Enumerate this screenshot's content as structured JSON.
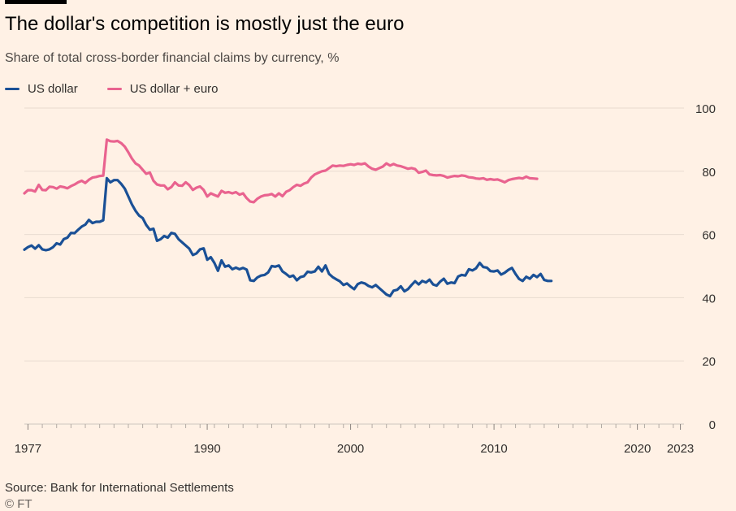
{
  "title": "The dollar's competition is mostly just the euro",
  "subtitle": "Share of total cross-border financial claims by currency, %",
  "source": "Source: Bank for International Settlements",
  "credit": "© FT",
  "colors": {
    "background": "#fff1e5",
    "usd": "#1a5096",
    "usd_eur": "#e9638f",
    "grid": "#e8dbd0",
    "text": "#33302e"
  },
  "chart_data": {
    "type": "line",
    "title": "The dollar's competition is mostly just the euro",
    "ylabel": "Share of total cross-border financial claims by currency, %",
    "ylim": [
      0,
      100
    ],
    "yticks": [
      0,
      20,
      40,
      60,
      80,
      100
    ],
    "xlim": [
      1977.25,
      2023.25
    ],
    "xticks": [
      {
        "value": 1977.5,
        "label": "1977"
      },
      {
        "value": 1990,
        "label": "1990"
      },
      {
        "value": 2000,
        "label": "2000"
      },
      {
        "value": 2010,
        "label": "2010"
      },
      {
        "value": 2020,
        "label": "2020"
      },
      {
        "value": 2023,
        "label": "2023"
      }
    ],
    "series": [
      {
        "name": "US dollar",
        "color": "#1a5096",
        "points": [
          [
            1977.25,
            55.2
          ],
          [
            1977.5,
            56
          ],
          [
            1977.75,
            56.5
          ],
          [
            1978,
            55.5
          ],
          [
            1978.25,
            56.6
          ],
          [
            1978.5,
            55.3
          ],
          [
            1978.75,
            55
          ],
          [
            1979,
            55.3
          ],
          [
            1979.25,
            56
          ],
          [
            1979.5,
            57.2
          ],
          [
            1979.75,
            56.8
          ],
          [
            1980,
            58.5
          ],
          [
            1980.25,
            59
          ],
          [
            1980.5,
            60.5
          ],
          [
            1980.75,
            60.4
          ],
          [
            1981,
            61.5
          ],
          [
            1981.25,
            62.5
          ],
          [
            1981.5,
            63.1
          ],
          [
            1981.75,
            64.6
          ],
          [
            1982,
            63.6
          ],
          [
            1982.25,
            64
          ],
          [
            1982.5,
            64
          ],
          [
            1982.75,
            64.5
          ],
          [
            1983,
            77.8
          ],
          [
            1983.25,
            76.5
          ],
          [
            1983.5,
            77.2
          ],
          [
            1983.75,
            77.2
          ],
          [
            1984,
            76
          ],
          [
            1984.25,
            74.5
          ],
          [
            1984.5,
            72
          ],
          [
            1984.75,
            69.5
          ],
          [
            1985,
            67.5
          ],
          [
            1985.25,
            66
          ],
          [
            1985.5,
            65.2
          ],
          [
            1985.75,
            63
          ],
          [
            1986,
            61.5
          ],
          [
            1986.25,
            61.8
          ],
          [
            1986.5,
            58
          ],
          [
            1986.75,
            58.5
          ],
          [
            1987,
            59.5
          ],
          [
            1987.25,
            59
          ],
          [
            1987.5,
            60.5
          ],
          [
            1987.75,
            60.2
          ],
          [
            1988,
            58.5
          ],
          [
            1988.25,
            57.5
          ],
          [
            1988.5,
            56.5
          ],
          [
            1988.75,
            55.5
          ],
          [
            1989,
            53.5
          ],
          [
            1989.25,
            54
          ],
          [
            1989.5,
            55.3
          ],
          [
            1989.75,
            55.6
          ],
          [
            1990,
            52
          ],
          [
            1990.25,
            52.8
          ],
          [
            1990.5,
            51
          ],
          [
            1990.75,
            48.5
          ],
          [
            1991,
            51.8
          ],
          [
            1991.25,
            49.8
          ],
          [
            1991.5,
            50.2
          ],
          [
            1991.75,
            49
          ],
          [
            1992,
            49.5
          ],
          [
            1992.25,
            49
          ],
          [
            1992.5,
            49.4
          ],
          [
            1992.75,
            48.9
          ],
          [
            1993,
            45.5
          ],
          [
            1993.25,
            45.3
          ],
          [
            1993.5,
            46.4
          ],
          [
            1993.75,
            47
          ],
          [
            1994,
            47.2
          ],
          [
            1994.25,
            48
          ],
          [
            1994.5,
            50
          ],
          [
            1994.75,
            49.8
          ],
          [
            1995,
            50.2
          ],
          [
            1995.25,
            48.3
          ],
          [
            1995.5,
            47.5
          ],
          [
            1995.75,
            46.6
          ],
          [
            1996,
            47
          ],
          [
            1996.25,
            45.5
          ],
          [
            1996.5,
            46.5
          ],
          [
            1996.75,
            46.8
          ],
          [
            1997,
            48.2
          ],
          [
            1997.25,
            48
          ],
          [
            1997.5,
            48.3
          ],
          [
            1997.75,
            49.8
          ],
          [
            1998,
            48.3
          ],
          [
            1998.25,
            50.2
          ],
          [
            1998.5,
            47.5
          ],
          [
            1998.75,
            46.5
          ],
          [
            1999,
            45.8
          ],
          [
            1999.25,
            45.2
          ],
          [
            1999.5,
            44
          ],
          [
            1999.75,
            44.5
          ],
          [
            2000,
            43.5
          ],
          [
            2000.25,
            42.7
          ],
          [
            2000.5,
            44.3
          ],
          [
            2000.75,
            44.8
          ],
          [
            2001,
            44.5
          ],
          [
            2001.25,
            43.7
          ],
          [
            2001.5,
            43.3
          ],
          [
            2001.75,
            44
          ],
          [
            2002,
            43
          ],
          [
            2002.25,
            42
          ],
          [
            2002.5,
            41
          ],
          [
            2002.75,
            40.5
          ],
          [
            2003,
            42.2
          ],
          [
            2003.25,
            42.5
          ],
          [
            2003.5,
            43.6
          ],
          [
            2003.75,
            42
          ],
          [
            2004,
            42.7
          ],
          [
            2004.25,
            44
          ],
          [
            2004.5,
            45.2
          ],
          [
            2004.75,
            44.2
          ],
          [
            2005,
            45.3
          ],
          [
            2005.25,
            44.8
          ],
          [
            2005.5,
            45.7
          ],
          [
            2005.75,
            44.2
          ],
          [
            2006,
            43.8
          ],
          [
            2006.25,
            45.1
          ],
          [
            2006.5,
            46
          ],
          [
            2006.75,
            44.4
          ],
          [
            2007,
            44.8
          ],
          [
            2007.25,
            44.6
          ],
          [
            2007.5,
            46.7
          ],
          [
            2007.75,
            47.2
          ],
          [
            2008,
            47
          ],
          [
            2008.25,
            49
          ],
          [
            2008.5,
            48.6
          ],
          [
            2008.75,
            49.3
          ],
          [
            2009,
            51
          ],
          [
            2009.25,
            49.7
          ],
          [
            2009.5,
            49.5
          ],
          [
            2009.75,
            48.4
          ],
          [
            2010,
            48.3
          ],
          [
            2010.25,
            48.6
          ],
          [
            2010.5,
            47.3
          ],
          [
            2010.75,
            47.9
          ],
          [
            2011,
            48.8
          ],
          [
            2011.25,
            49.4
          ],
          [
            2011.5,
            47.5
          ],
          [
            2011.75,
            45.9
          ],
          [
            2012,
            45.3
          ],
          [
            2012.25,
            46.6
          ],
          [
            2012.5,
            46
          ],
          [
            2012.75,
            47.2
          ],
          [
            2013,
            46.5
          ],
          [
            2013.25,
            47.5
          ],
          [
            2013.5,
            45.6
          ],
          [
            2013.75,
            45.3
          ],
          [
            2014,
            45.3
          ]
        ]
      },
      {
        "name": "US dollar + euro",
        "color": "#e9638f",
        "points": [
          [
            1977.25,
            73
          ],
          [
            1977.5,
            74
          ],
          [
            1977.75,
            74
          ],
          [
            1978,
            73.6
          ],
          [
            1978.25,
            75.7
          ],
          [
            1978.5,
            74.1
          ],
          [
            1978.75,
            74
          ],
          [
            1979,
            75.1
          ],
          [
            1979.25,
            75
          ],
          [
            1979.5,
            74.5
          ],
          [
            1979.75,
            75.2
          ],
          [
            1980,
            75
          ],
          [
            1980.25,
            74.6
          ],
          [
            1980.5,
            75.3
          ],
          [
            1980.75,
            75.8
          ],
          [
            1981,
            76.5
          ],
          [
            1981.25,
            77
          ],
          [
            1981.5,
            76.3
          ],
          [
            1981.75,
            77.3
          ],
          [
            1982,
            78
          ],
          [
            1982.25,
            78.2
          ],
          [
            1982.5,
            78.5
          ],
          [
            1982.75,
            78.6
          ],
          [
            1983,
            90
          ],
          [
            1983.25,
            89.5
          ],
          [
            1983.5,
            89.4
          ],
          [
            1983.75,
            89.6
          ],
          [
            1984,
            88.9
          ],
          [
            1984.25,
            87.8
          ],
          [
            1984.5,
            86
          ],
          [
            1984.75,
            84
          ],
          [
            1985,
            82.5
          ],
          [
            1985.25,
            81.8
          ],
          [
            1985.5,
            80.5
          ],
          [
            1985.75,
            79.2
          ],
          [
            1986,
            79.6
          ],
          [
            1986.25,
            77
          ],
          [
            1986.5,
            75.8
          ],
          [
            1986.75,
            75.5
          ],
          [
            1987,
            75.5
          ],
          [
            1987.25,
            74.3
          ],
          [
            1987.5,
            75
          ],
          [
            1987.75,
            76.5
          ],
          [
            1988,
            75.5
          ],
          [
            1988.25,
            75.4
          ],
          [
            1988.5,
            76.5
          ],
          [
            1988.75,
            75.6
          ],
          [
            1989,
            74.1
          ],
          [
            1989.25,
            74.8
          ],
          [
            1989.5,
            75.2
          ],
          [
            1989.75,
            74.1
          ],
          [
            1990,
            72
          ],
          [
            1990.25,
            73
          ],
          [
            1990.5,
            72.5
          ],
          [
            1990.75,
            72
          ],
          [
            1991,
            73.8
          ],
          [
            1991.25,
            73.2
          ],
          [
            1991.5,
            73.4
          ],
          [
            1991.75,
            73
          ],
          [
            1992,
            73.4
          ],
          [
            1992.25,
            72.6
          ],
          [
            1992.5,
            73
          ],
          [
            1992.75,
            71.5
          ],
          [
            1993,
            70.4
          ],
          [
            1993.25,
            70.2
          ],
          [
            1993.5,
            71.3
          ],
          [
            1993.75,
            72
          ],
          [
            1994,
            72.4
          ],
          [
            1994.25,
            72.5
          ],
          [
            1994.5,
            72.8
          ],
          [
            1994.75,
            72
          ],
          [
            1995,
            73
          ],
          [
            1995.25,
            72.1
          ],
          [
            1995.5,
            73.5
          ],
          [
            1995.75,
            74
          ],
          [
            1996,
            75
          ],
          [
            1996.25,
            75.7
          ],
          [
            1996.5,
            75.4
          ],
          [
            1996.75,
            76.1
          ],
          [
            1997,
            76.5
          ],
          [
            1997.25,
            78
          ],
          [
            1997.5,
            79
          ],
          [
            1997.75,
            79.5
          ],
          [
            1998,
            80
          ],
          [
            1998.25,
            80.2
          ],
          [
            1998.5,
            81
          ],
          [
            1998.75,
            81.8
          ],
          [
            1999,
            81.6
          ],
          [
            1999.25,
            81.8
          ],
          [
            1999.5,
            81.7
          ],
          [
            1999.75,
            82
          ],
          [
            2000,
            82.2
          ],
          [
            2000.25,
            82
          ],
          [
            2000.5,
            82.4
          ],
          [
            2000.75,
            82.2
          ],
          [
            2001,
            82.5
          ],
          [
            2001.25,
            81.5
          ],
          [
            2001.5,
            80.8
          ],
          [
            2001.75,
            80.5
          ],
          [
            2002,
            81
          ],
          [
            2002.25,
            81.5
          ],
          [
            2002.5,
            82.5
          ],
          [
            2002.75,
            81.8
          ],
          [
            2003,
            82.3
          ],
          [
            2003.25,
            81.8
          ],
          [
            2003.5,
            81.6
          ],
          [
            2003.75,
            81.2
          ],
          [
            2004,
            80.8
          ],
          [
            2004.25,
            81
          ],
          [
            2004.5,
            80.7
          ],
          [
            2004.75,
            79.5
          ],
          [
            2005,
            79.8
          ],
          [
            2005.25,
            80.2
          ],
          [
            2005.5,
            79
          ],
          [
            2005.75,
            78.8
          ],
          [
            2006,
            78.7
          ],
          [
            2006.25,
            78.8
          ],
          [
            2006.5,
            78.5
          ],
          [
            2006.75,
            78
          ],
          [
            2007,
            78.3
          ],
          [
            2007.25,
            78.5
          ],
          [
            2007.5,
            78.4
          ],
          [
            2007.75,
            78.7
          ],
          [
            2008,
            78.5
          ],
          [
            2008.25,
            78.1
          ],
          [
            2008.5,
            78
          ],
          [
            2008.75,
            77.7
          ],
          [
            2009,
            77.6
          ],
          [
            2009.25,
            77.8
          ],
          [
            2009.5,
            77.3
          ],
          [
            2009.75,
            77.5
          ],
          [
            2010,
            77.3
          ],
          [
            2010.25,
            77.4
          ],
          [
            2010.5,
            77
          ],
          [
            2010.75,
            76.5
          ],
          [
            2011,
            77.2
          ],
          [
            2011.25,
            77.5
          ],
          [
            2011.5,
            77.7
          ],
          [
            2011.75,
            77.9
          ],
          [
            2012,
            77.7
          ],
          [
            2012.25,
            78.3
          ],
          [
            2012.5,
            77.8
          ],
          [
            2012.75,
            77.7
          ],
          [
            2013,
            77.6
          ]
        ]
      }
    ]
  }
}
